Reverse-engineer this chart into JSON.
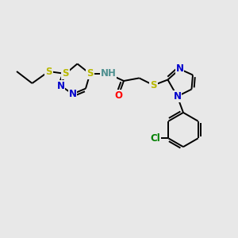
{
  "background_color": "#e8e8e8",
  "atoms": {
    "N_blue": "#0000cc",
    "S_yellow": "#b8b800",
    "O_red": "#ff0000",
    "Cl_green": "#008000",
    "H_teal": "#4f9090"
  },
  "bond_color": "#000000",
  "bond_width": 1.4,
  "font_size_atom": 8.5,
  "figsize": [
    3.0,
    3.0
  ],
  "dpi": 100,
  "xlim": [
    0,
    10
  ],
  "ylim": [
    0,
    10
  ]
}
